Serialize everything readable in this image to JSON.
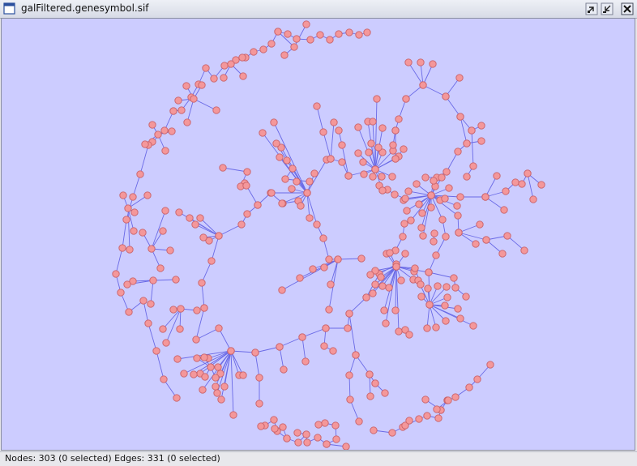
{
  "window": {
    "title": "galFiltered.genesymbol.sif",
    "icons": [
      "window-icon",
      "restore-icon",
      "minimize-icon",
      "close-icon"
    ]
  },
  "network": {
    "nodes": 303,
    "nodes_selected": 0,
    "edges": 331,
    "edges_selected": 0,
    "colors": {
      "background": "#ccccff",
      "node_fill": "#f4979a",
      "node_stroke": "#c9626a",
      "edge": "#6a6ae6"
    }
  },
  "statusbar": {
    "text": "Nodes: 303 (0 selected) Edges: 331 (0 selected)"
  }
}
